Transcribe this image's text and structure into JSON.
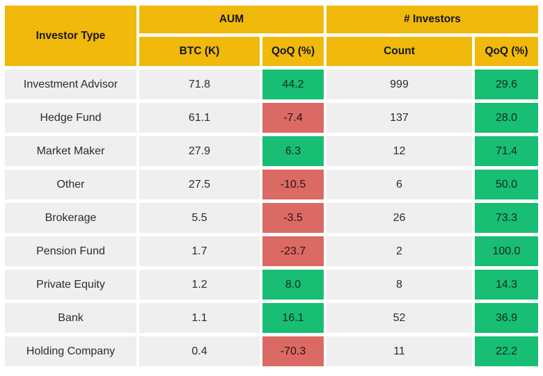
{
  "colors": {
    "header_yellow": "#F0B90B",
    "positive_green": "#17BE73",
    "negative_red": "#DB6964",
    "row_gray": "#EFEFEF"
  },
  "table": {
    "header": {
      "investor_type": "Investor Type",
      "group_aum": "AUM",
      "group_investors": "# Investors",
      "col_btc": "BTC (K)",
      "col_aum_qoq": "QoQ (%)",
      "col_count": "Count",
      "col_inv_qoq": "QoQ (%)"
    },
    "rows": [
      {
        "investor_type": "Investment Advisor",
        "btc_k": "71.8",
        "aum_qoq": "44.2",
        "aum_qoq_dir": "up",
        "count": "999",
        "inv_qoq": "29.6",
        "inv_qoq_dir": "up"
      },
      {
        "investor_type": "Hedge Fund",
        "btc_k": "61.1",
        "aum_qoq": "-7.4",
        "aum_qoq_dir": "down",
        "count": "137",
        "inv_qoq": "28.0",
        "inv_qoq_dir": "up"
      },
      {
        "investor_type": "Market Maker",
        "btc_k": "27.9",
        "aum_qoq": "6.3",
        "aum_qoq_dir": "up",
        "count": "12",
        "inv_qoq": "71.4",
        "inv_qoq_dir": "up"
      },
      {
        "investor_type": "Other",
        "btc_k": "27.5",
        "aum_qoq": "-10.5",
        "aum_qoq_dir": "down",
        "count": "6",
        "inv_qoq": "50.0",
        "inv_qoq_dir": "up"
      },
      {
        "investor_type": "Brokerage",
        "btc_k": "5.5",
        "aum_qoq": "-3.5",
        "aum_qoq_dir": "down",
        "count": "26",
        "inv_qoq": "73.3",
        "inv_qoq_dir": "up"
      },
      {
        "investor_type": "Pension Fund",
        "btc_k": "1.7",
        "aum_qoq": "-23.7",
        "aum_qoq_dir": "down",
        "count": "2",
        "inv_qoq": "100.0",
        "inv_qoq_dir": "up"
      },
      {
        "investor_type": "Private Equity",
        "btc_k": "1.2",
        "aum_qoq": "8.0",
        "aum_qoq_dir": "up",
        "count": "8",
        "inv_qoq": "14.3",
        "inv_qoq_dir": "up"
      },
      {
        "investor_type": "Bank",
        "btc_k": "1.1",
        "aum_qoq": "16.1",
        "aum_qoq_dir": "up",
        "count": "52",
        "inv_qoq": "36.9",
        "inv_qoq_dir": "up"
      },
      {
        "investor_type": "Holding Company",
        "btc_k": "0.4",
        "aum_qoq": "-70.3",
        "aum_qoq_dir": "down",
        "count": "11",
        "inv_qoq": "22.2",
        "inv_qoq_dir": "up"
      }
    ]
  },
  "chart_data": {
    "type": "table",
    "columns": [
      "Investor Type",
      "AUM BTC (K)",
      "AUM QoQ (%)",
      "# Investors Count",
      "# Investors QoQ (%)"
    ],
    "rows": [
      [
        "Investment Advisor",
        71.8,
        44.2,
        999,
        29.6
      ],
      [
        "Hedge Fund",
        61.1,
        -7.4,
        137,
        28.0
      ],
      [
        "Market Maker",
        27.9,
        6.3,
        12,
        71.4
      ],
      [
        "Other",
        27.5,
        -10.5,
        6,
        50.0
      ],
      [
        "Brokerage",
        5.5,
        -3.5,
        26,
        73.3
      ],
      [
        "Pension Fund",
        1.7,
        -23.7,
        2,
        100.0
      ],
      [
        "Private Equity",
        1.2,
        8.0,
        8,
        14.3
      ],
      [
        "Bank",
        1.1,
        16.1,
        52,
        36.9
      ],
      [
        "Holding Company",
        0.4,
        -70.3,
        11,
        22.2
      ]
    ],
    "layout": "QoQ (%) cells are color-coded: green = positive change, red = negative change; grouped headers AUM and # Investors"
  }
}
